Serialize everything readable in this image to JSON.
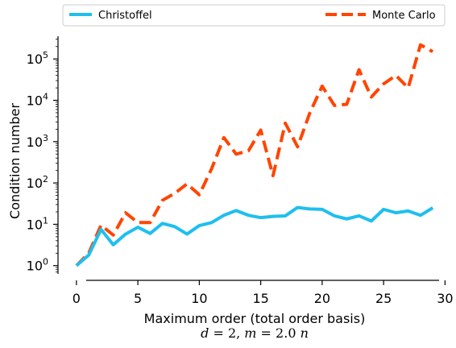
{
  "chart_data": {
    "type": "line",
    "title": "",
    "xlabel": "Maximum order (total order basis)",
    "ylabel": "Condition number",
    "subtitle_parts": [
      "d",
      " = 2, ",
      "m",
      " = 2.0 ",
      "n"
    ],
    "x": [
      0,
      1,
      2,
      3,
      4,
      5,
      6,
      7,
      8,
      9,
      10,
      11,
      12,
      13,
      14,
      15,
      16,
      17,
      18,
      19,
      20,
      21,
      22,
      23,
      24,
      25,
      26,
      27,
      28,
      29
    ],
    "xlim": [
      -1.5,
      30.5
    ],
    "ylim_log10": [
      -0.2,
      5.55
    ],
    "yscale": "log",
    "xticks": [
      0,
      5,
      10,
      15,
      20,
      25,
      30
    ],
    "xtick_labels": [
      "0",
      "5",
      "10",
      "15",
      "20",
      "25",
      "30"
    ],
    "yticks_exp": [
      0,
      1,
      2,
      3,
      4,
      5
    ],
    "ytick_base": "10",
    "grid": false,
    "legend_placement": "top, above plot",
    "series": [
      {
        "name": "Christoffel",
        "color": "#1ebfef",
        "style": "solid",
        "values": [
          1,
          1.8,
          7.5,
          3.2,
          5.8,
          8.5,
          6,
          10.5,
          8.8,
          5.8,
          9.3,
          11,
          16.5,
          21.5,
          16.5,
          14.5,
          15.5,
          16,
          25.5,
          23.5,
          23,
          16,
          13.5,
          16,
          12,
          23,
          19,
          21,
          16.5,
          25
        ]
      },
      {
        "name": "Monte Carlo",
        "color": "#ff4500",
        "style": "dashed",
        "values": [
          1,
          2,
          9.5,
          5.5,
          19,
          11,
          11,
          38,
          56,
          95,
          52,
          220,
          1250,
          500,
          600,
          1900,
          150,
          2800,
          750,
          5000,
          22000,
          7500,
          8000,
          55000,
          12000,
          25000,
          40000,
          20000,
          220000,
          150000
        ]
      }
    ]
  }
}
